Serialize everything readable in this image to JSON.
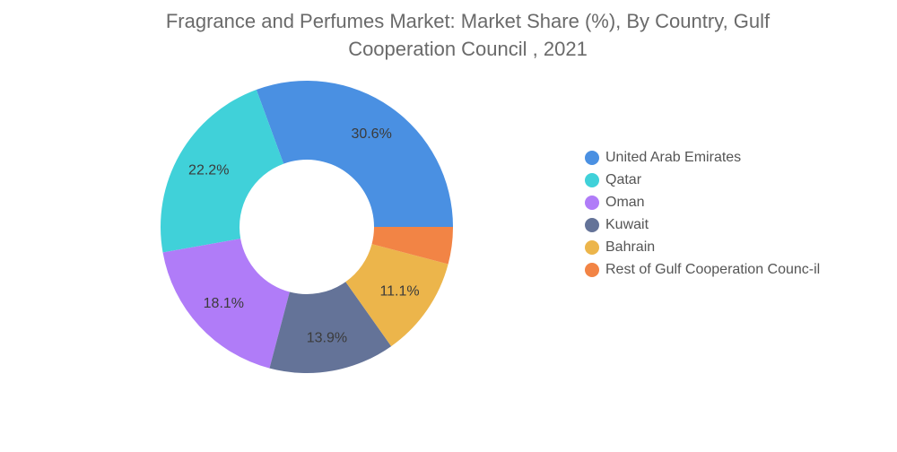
{
  "chart_data": {
    "type": "pie",
    "variant": "donut",
    "title": "Fragrance and Perfumes Market: Market Share (%), By Country, Gulf Cooperation Council , 2021",
    "title_lines": [
      "Fragrance and Perfumes Market: Market Share (%), By Country, Gulf",
      "Cooperation Council , 2021"
    ],
    "categories": [
      "United Arab Emirates",
      "Qatar",
      "Oman",
      "Kuwait",
      "Bahrain",
      "Rest of Gulf Cooperation Council"
    ],
    "legend_labels": [
      "United Arab Emirates",
      "Qatar",
      "Oman",
      "Kuwait",
      "Bahrain",
      "Rest of Gulf Cooperation Counc-il"
    ],
    "values": [
      30.6,
      22.2,
      18.1,
      13.9,
      11.1,
      4.1
    ],
    "data_labels": [
      "30.6%",
      "22.2%",
      "18.1%",
      "13.9%",
      "11.1%",
      ""
    ],
    "colors": [
      "#4a90e2",
      "#40d1d9",
      "#b07cf8",
      "#647398",
      "#ecb54b",
      "#f28445"
    ],
    "legend_position": "right"
  }
}
